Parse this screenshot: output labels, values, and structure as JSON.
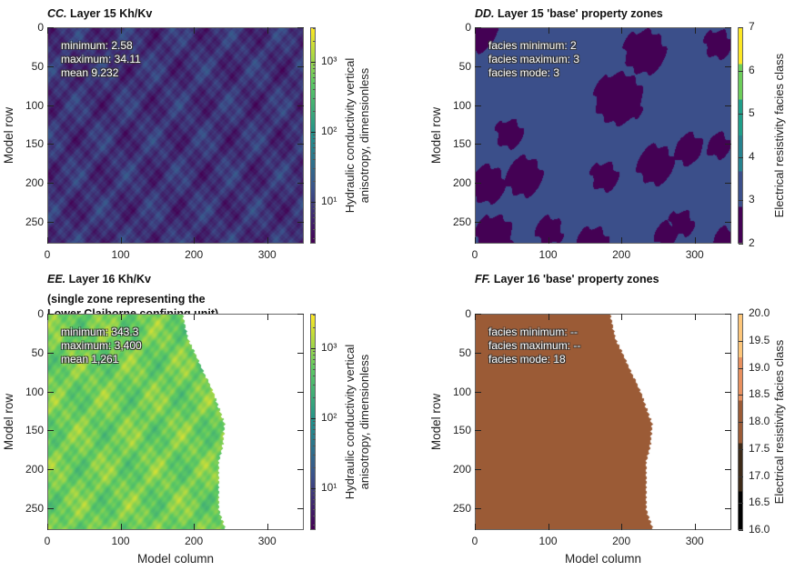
{
  "chart_data": [
    {
      "id": "CC",
      "type": "heatmap",
      "title_letter": "CC.",
      "title": "Layer 15 Kh/Kv",
      "stats": [
        "minimum: 2.58",
        "maximum: 34.11",
        "mean 9.232"
      ],
      "xlabel": "",
      "ylabel": "Model row",
      "xlim": [
        0,
        350
      ],
      "ylim": [
        0,
        278
      ],
      "xticks": [
        "0",
        "100",
        "200",
        "300"
      ],
      "yticks": [
        "0",
        "50",
        "100",
        "150",
        "200",
        "250"
      ],
      "colorbar": {
        "scale": "log",
        "range": [
          2.5,
          3100
        ],
        "ticks": [
          "10¹",
          "10²",
          "10³"
        ],
        "label": [
          "Hydraulic conductivity vertical",
          "anisotropy, dimensionless"
        ]
      }
    },
    {
      "id": "DD",
      "type": "heatmap",
      "title_letter": "DD.",
      "title": "Layer 15  'base' property zones",
      "stats": [
        "facies minimum: 2",
        "facies maximum: 3",
        "facies mode: 3"
      ],
      "xlabel": "",
      "ylabel": "Model row",
      "xlim": [
        0,
        350
      ],
      "ylim": [
        0,
        278
      ],
      "xticks": [
        "0",
        "100",
        "200",
        "300"
      ],
      "yticks": [
        "0",
        "50",
        "100",
        "150",
        "200",
        "250"
      ],
      "colorbar": {
        "scale": "discrete",
        "range": [
          2,
          7
        ],
        "ticks": [
          "2",
          "3",
          "4",
          "5",
          "6",
          "7"
        ],
        "colors": [
          "#440154",
          "#3b4f8a",
          "#26828e",
          "#1f9e89",
          "#6ccd5a",
          "#fde725"
        ],
        "label": [
          "Electrical resistivity facies class"
        ]
      }
    },
    {
      "id": "EE",
      "type": "heatmap",
      "title_letter": "EE.",
      "title": "Layer 16 Kh/Kv",
      "subtitle": [
        "(single zone representing the",
        "Lower Claiborne confining unit)"
      ],
      "stats": [
        "minimum: 343.3",
        "maximum: 3,400",
        "mean 1,261"
      ],
      "xlabel": "Model column",
      "ylabel": "Model row",
      "xlim": [
        0,
        350
      ],
      "ylim": [
        0,
        278
      ],
      "xticks": [
        "0",
        "100",
        "200",
        "300"
      ],
      "yticks": [
        "0",
        "50",
        "100",
        "150",
        "200",
        "250"
      ],
      "colorbar": {
        "scale": "log",
        "range": [
          2.5,
          3100
        ],
        "ticks": [
          "10¹",
          "10²",
          "10³"
        ],
        "label": [
          "Hydraulic conductivity vertical",
          "anisotropy, dimensionless"
        ]
      }
    },
    {
      "id": "FF",
      "type": "heatmap",
      "title_letter": "FF.",
      "title": "Layer 16  'base' property zones",
      "stats": [
        "facies  minimum: --",
        "facies maximum: --",
        "facies mode: 18"
      ],
      "xlabel": "Model column",
      "ylabel": "Model row",
      "xlim": [
        0,
        350
      ],
      "ylim": [
        0,
        278
      ],
      "xticks": [
        "0",
        "100",
        "200",
        "300"
      ],
      "yticks": [
        "0",
        "50",
        "100",
        "150",
        "200",
        "250"
      ],
      "colorbar": {
        "scale": "discrete",
        "range": [
          16,
          20
        ],
        "ticks": [
          "16.0",
          "16.5",
          "17.0",
          "17.5",
          "18.0",
          "18.5",
          "19.0",
          "19.5",
          "20.0"
        ],
        "colors": [
          "#000000",
          "#3d2a18",
          "#9b5b36",
          "#e8905e",
          "#fdc67a"
        ],
        "label": [
          "Electrical resistivity facies class"
        ]
      }
    }
  ]
}
